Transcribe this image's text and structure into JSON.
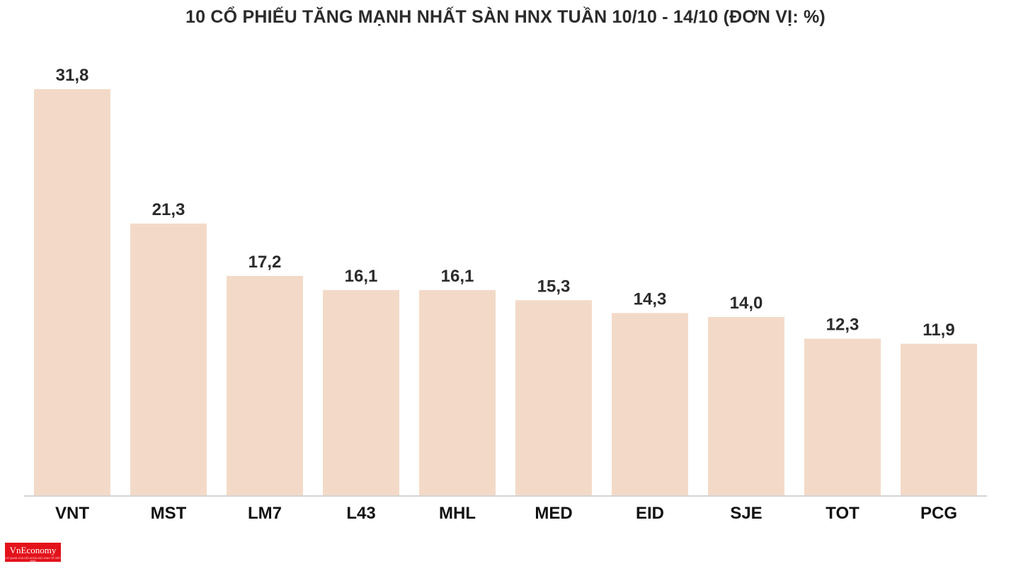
{
  "title": "10 CỔ PHIẾU TĂNG MẠNH NHẤT SÀN HNX TUẦN 10/10 - 14/10 (ĐƠN VỊ: %)",
  "logo": {
    "name": "VnEconomy",
    "tagline": "CƠ QUAN CỦA HỘI KHOA HỌC KINH TẾ VIỆT NAM"
  },
  "colors": {
    "bar": "#f3dac8",
    "axis": "#d4d4d4",
    "value_text": "#2b2b2b",
    "tick_text": "#111111",
    "logo_bg": "#e3121b"
  },
  "chart_data": {
    "type": "bar",
    "title": "10 CỔ PHIẾU TĂNG MẠNH NHẤT SÀN HNX TUẦN 10/10 - 14/10 (ĐƠN VỊ: %)",
    "xlabel": "",
    "ylabel": "",
    "categories": [
      "VNT",
      "MST",
      "LM7",
      "L43",
      "MHL",
      "MED",
      "EID",
      "SJE",
      "TOT",
      "PCG"
    ],
    "values": [
      31.8,
      21.3,
      17.2,
      16.1,
      16.1,
      15.3,
      14.3,
      14.0,
      12.3,
      11.9
    ],
    "value_labels": [
      "31,8",
      "21,3",
      "17,2",
      "16,1",
      "16,1",
      "15,3",
      "14,3",
      "14,0",
      "12,3",
      "11,9"
    ],
    "ylim": [
      0,
      31.8
    ],
    "grid": false,
    "legend": "none",
    "y_axis_visible": false,
    "data_labels": true
  }
}
